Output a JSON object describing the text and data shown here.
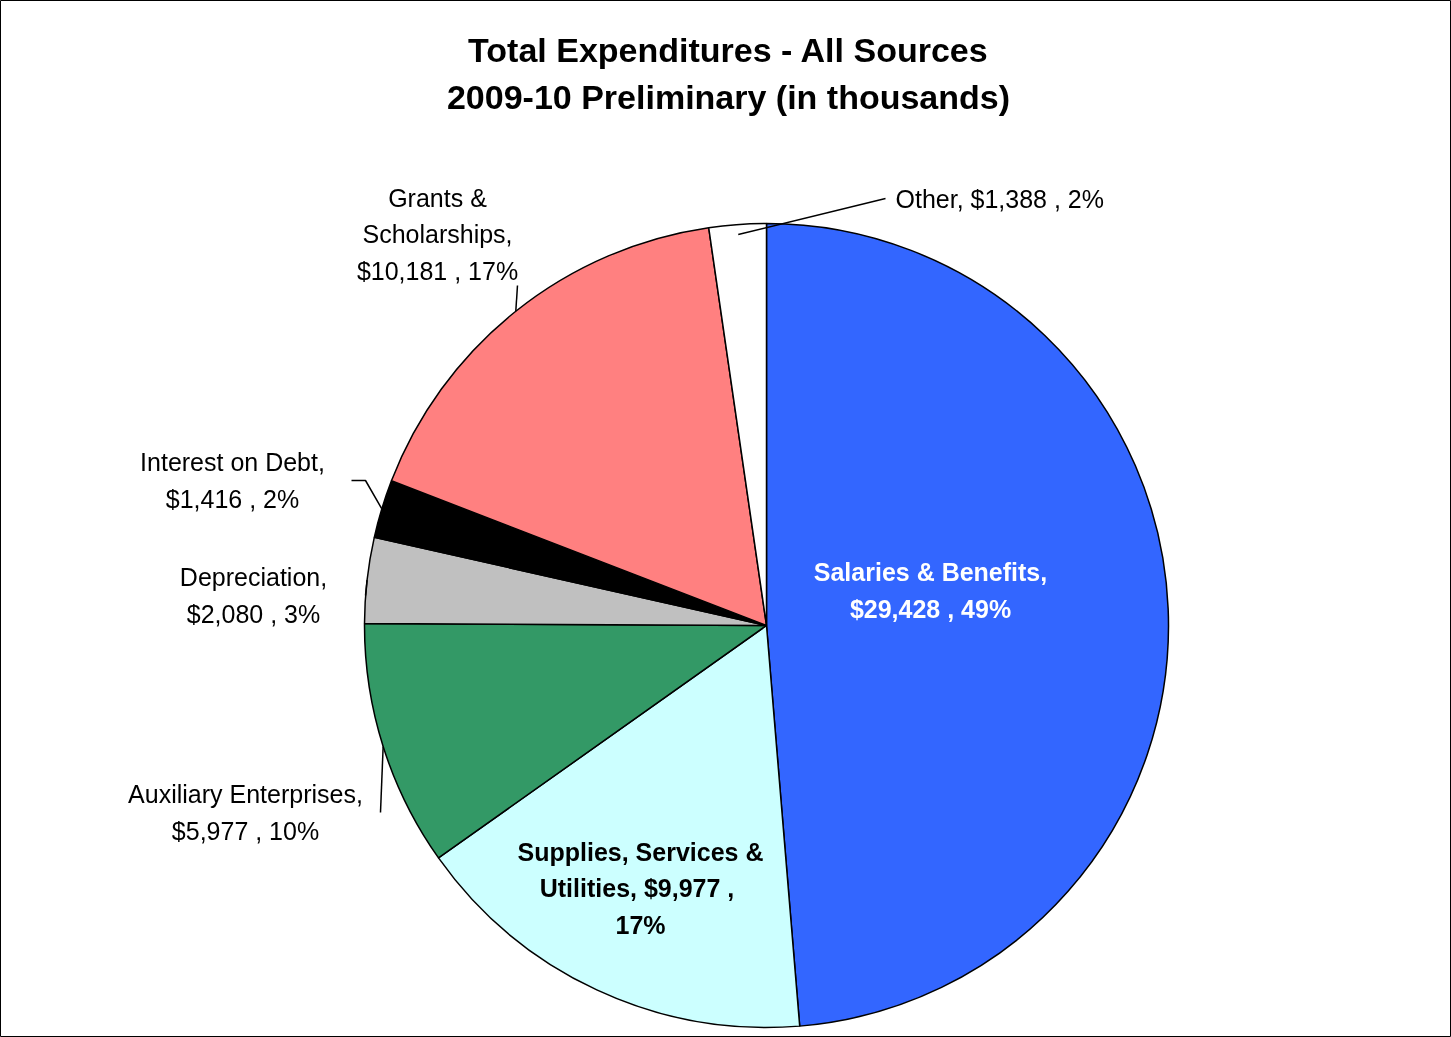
{
  "chart_data": {
    "type": "pie",
    "title": "Total Expenditures - All Sources\n2009-10 Preliminary (in thousands)",
    "categories": [
      "Salaries & Benefits",
      "Supplies, Services & Utilities",
      "Auxiliary Enterprises",
      "Depreciation",
      "Interest on Debt",
      "Grants & Scholarships",
      "Other"
    ],
    "values": [
      29428,
      9977,
      5977,
      2080,
      1416,
      10181,
      1388
    ],
    "colors": [
      "#3366ff",
      "#ccffff",
      "#339966",
      "#c0c0c0",
      "#000000",
      "#ff8080",
      "#ffffff"
    ],
    "value_labels": [
      ",  $29,428 , 49%",
      ",  $9,977 , 17%",
      ",  $5,977 , 10%",
      ", $2,080 , 3%",
      ", $1,416 , 2%",
      ", $10,181 , 17%",
      ",  $1,388 , 2%"
    ]
  }
}
